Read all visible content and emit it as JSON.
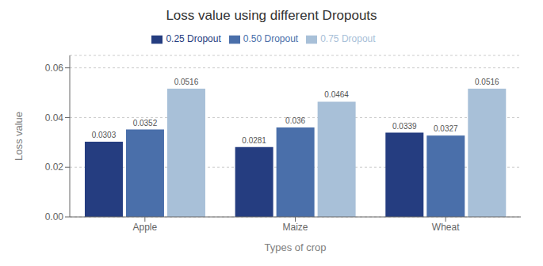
{
  "chart_data": {
    "type": "bar",
    "title": "Loss value using different Dropouts",
    "xlabel": "Types of crop",
    "ylabel": "Loss value",
    "categories": [
      "Apple",
      "Maize",
      "Wheat"
    ],
    "series": [
      {
        "name": "0.25 Dropout",
        "color": "#253d80",
        "values": [
          0.0303,
          0.0281,
          0.0339
        ]
      },
      {
        "name": "0.50 Dropout",
        "color": "#4a6faa",
        "values": [
          0.0352,
          0.036,
          0.0327
        ]
      },
      {
        "name": "0.75 Dropout",
        "color": "#a8c0d8",
        "values": [
          0.0516,
          0.0464,
          0.0516
        ]
      }
    ],
    "ylim": [
      0,
      0.065
    ],
    "yticks": [
      {
        "value": 0,
        "label": "0.00"
      },
      0.02,
      0.04,
      0.06
    ],
    "grid": true,
    "legend": "top",
    "data_labels": true
  }
}
